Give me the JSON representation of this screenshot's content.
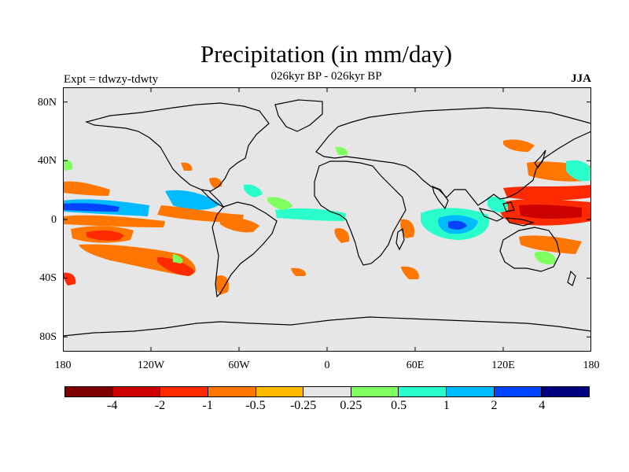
{
  "header": {
    "title": "Precipitation (in mm/day)",
    "subtitle": "026kyr BP - 026kyr BP",
    "experiment": "Expt = tdwzy-tdwty",
    "season": "JJA"
  },
  "map": {
    "projection": "cylindrical-equidistant",
    "lat_range": [
      -90,
      90
    ],
    "lon_range": [
      -180,
      180
    ],
    "lat_ticks": [
      "80N",
      "40N",
      "0",
      "40S",
      "80S"
    ],
    "lon_ticks": [
      "180",
      "120W",
      "60W",
      "0",
      "60E",
      "120E",
      "180"
    ],
    "background_color": "#e6e6e6"
  },
  "colorbar": {
    "colors": [
      "#7f0000",
      "#cc0000",
      "#ff2a00",
      "#ff7700",
      "#ffbb00",
      "#e6e6e6",
      "#80ff60",
      "#2affcc",
      "#00bbff",
      "#0044ff",
      "#000080"
    ],
    "labels": [
      "-4",
      "-2",
      "-1",
      "-0.5",
      "-0.25",
      "0.25",
      "0.5",
      "1",
      "2",
      "4"
    ]
  }
}
